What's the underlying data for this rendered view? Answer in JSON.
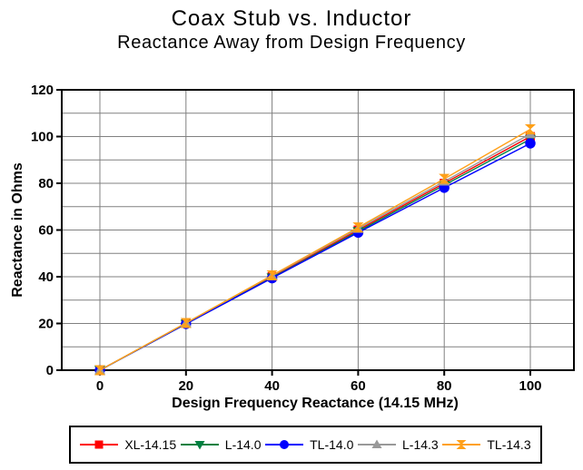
{
  "title": "Coax Stub vs. Inductor",
  "subtitle": "Reactance Away from Design Frequency",
  "colors": {
    "background": "#FFFFFF",
    "axis": "#000000",
    "grid": "#808080",
    "text": "#000000"
  },
  "chart_data": {
    "type": "line",
    "title": "Coax Stub vs. Inductor",
    "subtitle": "Reactance Away from Design Frequency",
    "xlabel": "Design Frequency Reactance (14.15 MHz)",
    "ylabel": "Reactance in Ohms",
    "x": [
      0,
      20,
      40,
      60,
      80,
      100
    ],
    "series": [
      {
        "name": "XL-14.15",
        "color": "#FF0000",
        "marker": "square",
        "values": [
          0,
          20,
          40,
          60,
          80,
          100
        ]
      },
      {
        "name": "L-14.0",
        "color": "#008040",
        "marker": "triangle-down",
        "values": [
          0,
          19.8,
          39.6,
          59.4,
          79.2,
          98.9
        ]
      },
      {
        "name": "TL-14.0",
        "color": "#0000FF",
        "marker": "circle",
        "values": [
          0,
          19.8,
          39.4,
          58.9,
          78.1,
          97.1
        ]
      },
      {
        "name": "L-14.3",
        "color": "#999999",
        "marker": "triangle-up",
        "values": [
          0,
          20.2,
          40.4,
          60.6,
          80.8,
          101.1
        ]
      },
      {
        "name": "TL-14.3",
        "color": "#FFA018",
        "marker": "hourglass",
        "values": [
          0,
          20.2,
          40.6,
          61.1,
          81.9,
          103.1
        ]
      }
    ],
    "xlim": [
      -9,
      110
    ],
    "ylim": [
      0,
      120
    ],
    "x_ticks": [
      0,
      20,
      40,
      60,
      80,
      100
    ],
    "y_ticks": [
      0,
      20,
      40,
      60,
      80,
      100,
      120
    ],
    "y_minor_step": 10,
    "grid": true,
    "legend_position": "bottom"
  }
}
